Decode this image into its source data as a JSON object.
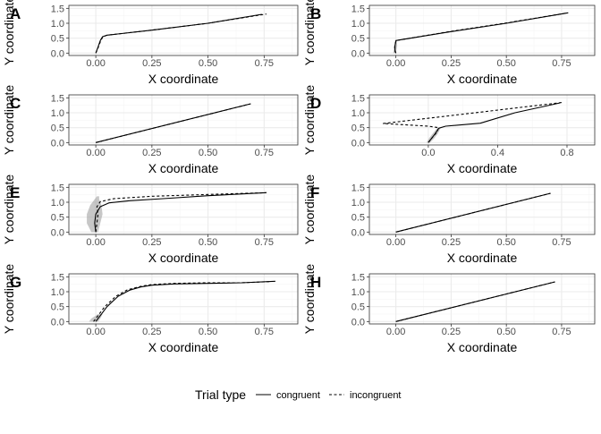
{
  "chart_data": [
    {
      "panel": "A",
      "type": "line",
      "xlabel": "X coordinate",
      "ylabel": "Y coordinate",
      "xlim": [
        -0.12,
        0.9
      ],
      "ylim": [
        -0.08,
        1.6
      ],
      "xticks": [
        0.0,
        0.25,
        0.5,
        0.75
      ],
      "xtick_labels": [
        "0.00",
        "0.25",
        "0.50",
        "0.75"
      ],
      "yticks": [
        0.0,
        0.5,
        1.0,
        1.5
      ],
      "ytick_labels": [
        "0.0",
        "0.5",
        "1.0",
        "1.5"
      ],
      "series": [
        {
          "name": "congruent",
          "dash": "solid",
          "x": [
            0,
            0.005,
            0.012,
            0.02,
            0.03,
            0.05,
            0.25,
            0.5,
            0.74
          ],
          "y": [
            0,
            0.1,
            0.25,
            0.42,
            0.55,
            0.6,
            0.77,
            1.0,
            1.3
          ]
        },
        {
          "name": "incongruent",
          "dash": "dashed",
          "x": [
            0,
            0.006,
            0.014,
            0.022,
            0.032,
            0.05,
            0.25,
            0.5,
            0.76
          ],
          "y": [
            0,
            0.1,
            0.25,
            0.42,
            0.55,
            0.6,
            0.77,
            1.0,
            1.31
          ]
        }
      ]
    },
    {
      "panel": "B",
      "type": "line",
      "xlabel": "X coordinate",
      "ylabel": "Y coordinate",
      "xlim": [
        -0.12,
        0.9
      ],
      "ylim": [
        -0.08,
        1.6
      ],
      "xticks": [
        0.0,
        0.25,
        0.5,
        0.75
      ],
      "xtick_labels": [
        "0.00",
        "0.25",
        "0.50",
        "0.75"
      ],
      "yticks": [
        0.0,
        0.5,
        1.0,
        1.5
      ],
      "ytick_labels": [
        "0.0",
        "0.5",
        "1.0",
        "1.5"
      ],
      "band": {
        "x": [
          -0.008,
          -0.004,
          0.0,
          0.0
        ],
        "y": [
          0,
          0.1,
          0.25,
          0.4
        ],
        "half_width": [
          0.004,
          0.006,
          0.006,
          0.004
        ]
      },
      "series": [
        {
          "name": "congruent",
          "dash": "solid",
          "x": [
            0,
            -0.004,
            -0.004,
            0.0,
            0.0,
            0.25,
            0.5,
            0.78
          ],
          "y": [
            0,
            0.1,
            0.25,
            0.4,
            0.42,
            0.72,
            1.0,
            1.35
          ]
        },
        {
          "name": "incongruent",
          "dash": "dashed",
          "x": [
            0,
            -0.006,
            -0.005,
            0.0,
            0.0,
            0.25,
            0.5,
            0.77
          ],
          "y": [
            0,
            0.1,
            0.25,
            0.4,
            0.42,
            0.73,
            1.01,
            1.34
          ]
        }
      ]
    },
    {
      "panel": "C",
      "type": "line",
      "xlabel": "X coordinate",
      "ylabel": "Y coordinate",
      "xlim": [
        -0.12,
        0.9
      ],
      "ylim": [
        -0.08,
        1.6
      ],
      "xticks": [
        0.0,
        0.25,
        0.5,
        0.75
      ],
      "xtick_labels": [
        "0.00",
        "0.25",
        "0.50",
        "0.75"
      ],
      "yticks": [
        0.0,
        0.5,
        1.0,
        1.5
      ],
      "ytick_labels": [
        "0.0",
        "0.5",
        "1.0",
        "1.5"
      ],
      "series": [
        {
          "name": "congruent",
          "dash": "solid",
          "x": [
            0,
            0.69
          ],
          "y": [
            0,
            1.3
          ]
        },
        {
          "name": "incongruent",
          "dash": "dashed",
          "x": [
            0,
            0.69
          ],
          "y": [
            0,
            1.3
          ]
        }
      ]
    },
    {
      "panel": "D",
      "type": "line",
      "xlabel": "X coordinate",
      "ylabel": "Y coordinate",
      "xlim": [
        -0.34,
        0.96
      ],
      "ylim": [
        -0.08,
        1.6
      ],
      "xticks": [
        0.0,
        0.4,
        0.8
      ],
      "xtick_labels": [
        "0.0",
        "0.4",
        "0.8"
      ],
      "yticks": [
        0.0,
        0.5,
        1.0,
        1.5
      ],
      "ytick_labels": [
        "0.0",
        "0.5",
        "1.0",
        "1.5"
      ],
      "band": {
        "x": [
          0.0,
          0.02,
          0.04,
          0.06
        ],
        "y": [
          0,
          0.15,
          0.3,
          0.48
        ],
        "half_width": [
          0.01,
          0.015,
          0.015,
          0.01
        ]
      },
      "series": [
        {
          "name": "congruent",
          "dash": "solid",
          "x": [
            0,
            0.02,
            0.04,
            0.06,
            0.1,
            0.3,
            0.5,
            0.76
          ],
          "y": [
            0,
            0.15,
            0.3,
            0.48,
            0.55,
            0.65,
            1.0,
            1.33
          ]
        },
        {
          "name": "incongruent",
          "dash": "dashed",
          "x": [
            0,
            0.02,
            0.05,
            0.06,
            0.0,
            -0.26,
            0.3,
            0.78
          ],
          "y": [
            0,
            0.15,
            0.35,
            0.5,
            0.55,
            0.64,
            1.02,
            1.35
          ]
        }
      ]
    },
    {
      "panel": "E",
      "type": "line",
      "xlabel": "X coordinate",
      "ylabel": "Y coordinate",
      "xlim": [
        -0.12,
        0.9
      ],
      "ylim": [
        -0.08,
        1.6
      ],
      "xticks": [
        0.0,
        0.25,
        0.5,
        0.75
      ],
      "xtick_labels": [
        "0.00",
        "0.25",
        "0.50",
        "0.75"
      ],
      "yticks": [
        0.0,
        0.5,
        1.0,
        1.5
      ],
      "ytick_labels": [
        "0.0",
        "0.5",
        "1.0",
        "1.5"
      ],
      "band": {
        "x": [
          -0.005,
          -0.01,
          -0.005,
          0.0,
          0.005,
          0.01
        ],
        "y": [
          0,
          0.3,
          0.6,
          0.9,
          1.1,
          1.2
        ],
        "half_width": [
          0.015,
          0.03,
          0.035,
          0.025,
          0.01,
          0.005
        ]
      },
      "series": [
        {
          "name": "congruent",
          "dash": "solid",
          "x": [
            0,
            -0.005,
            0.0,
            0.02,
            0.06,
            0.15,
            0.3,
            0.5,
            0.76
          ],
          "y": [
            0,
            0.3,
            0.6,
            0.85,
            0.98,
            1.05,
            1.12,
            1.22,
            1.32
          ]
        },
        {
          "name": "incongruent",
          "dash": "dashed",
          "x": [
            0,
            0.005,
            0.01,
            0.005,
            0.02,
            0.08,
            0.25,
            0.5,
            0.76
          ],
          "y": [
            0,
            0.3,
            0.6,
            0.85,
            1.02,
            1.12,
            1.2,
            1.26,
            1.32
          ]
        }
      ]
    },
    {
      "panel": "F",
      "type": "line",
      "xlabel": "X coordinate",
      "ylabel": "Y coordinate",
      "xlim": [
        -0.12,
        0.9
      ],
      "ylim": [
        -0.08,
        1.6
      ],
      "xticks": [
        0.0,
        0.25,
        0.5,
        0.75
      ],
      "xtick_labels": [
        "0.00",
        "0.25",
        "0.50",
        "0.75"
      ],
      "yticks": [
        0.0,
        0.5,
        1.0,
        1.5
      ],
      "ytick_labels": [
        "0.0",
        "0.5",
        "1.0",
        "1.5"
      ],
      "series": [
        {
          "name": "congruent",
          "dash": "solid",
          "x": [
            0,
            0.7
          ],
          "y": [
            0,
            1.3
          ]
        },
        {
          "name": "incongruent",
          "dash": "dashed",
          "x": [
            0,
            0.7
          ],
          "y": [
            0,
            1.3
          ]
        }
      ]
    },
    {
      "panel": "G",
      "type": "line",
      "xlabel": "X coordinate",
      "ylabel": "Y coordinate",
      "xlim": [
        -0.12,
        0.9
      ],
      "ylim": [
        -0.08,
        1.6
      ],
      "xticks": [
        0.0,
        0.25,
        0.5,
        0.75
      ],
      "xtick_labels": [
        "0.00",
        "0.25",
        "0.50",
        "0.75"
      ],
      "yticks": [
        0.0,
        0.5,
        1.0,
        1.5
      ],
      "ytick_labels": [
        "0.0",
        "0.5",
        "1.0",
        "1.5"
      ],
      "band": {
        "x": [
          -0.01,
          0.0,
          0.02
        ],
        "y": [
          0,
          0.1,
          0.25
        ],
        "half_width": [
          0.02,
          0.02,
          0.01
        ]
      },
      "series": [
        {
          "name": "congruent",
          "dash": "solid",
          "x": [
            0,
            0.02,
            0.05,
            0.1,
            0.15,
            0.2,
            0.25,
            0.35,
            0.5,
            0.65,
            0.8
          ],
          "y": [
            0,
            0.2,
            0.5,
            0.85,
            1.05,
            1.16,
            1.22,
            1.26,
            1.28,
            1.3,
            1.35
          ]
        },
        {
          "name": "incongruent",
          "dash": "dashed",
          "x": [
            -0.01,
            0.01,
            0.04,
            0.09,
            0.14,
            0.2,
            0.25,
            0.35,
            0.5,
            0.65,
            0.78
          ],
          "y": [
            0,
            0.2,
            0.5,
            0.85,
            1.06,
            1.18,
            1.24,
            1.28,
            1.3,
            1.3,
            1.34
          ]
        }
      ]
    },
    {
      "panel": "H",
      "type": "line",
      "xlabel": "X coordinate",
      "ylabel": "Y coordinate",
      "xlim": [
        -0.12,
        0.9
      ],
      "ylim": [
        -0.08,
        1.6
      ],
      "xticks": [
        0.0,
        0.25,
        0.5,
        0.75
      ],
      "xtick_labels": [
        "0.00",
        "0.25",
        "0.50",
        "0.75"
      ],
      "yticks": [
        0.0,
        0.5,
        1.0,
        1.5
      ],
      "ytick_labels": [
        "0.0",
        "0.5",
        "1.0",
        "1.5"
      ],
      "series": [
        {
          "name": "congruent",
          "dash": "solid",
          "x": [
            0,
            0.72
          ],
          "y": [
            0,
            1.33
          ]
        },
        {
          "name": "incongruent",
          "dash": "dashed",
          "x": [
            0,
            0.72
          ],
          "y": [
            0,
            1.33
          ]
        }
      ]
    }
  ],
  "legend": {
    "title": "Trial type",
    "position": "bottom",
    "entries": [
      {
        "label": "congruent",
        "dash": "solid"
      },
      {
        "label": "incongruent",
        "dash": "dashed"
      }
    ]
  },
  "colors": {
    "panel_border": "#333333",
    "grid_major": "#ebebeb",
    "grid_minor": "#f5f5f5",
    "line": "#000000",
    "band": "#999999",
    "tick_text": "#4d4d4d"
  }
}
